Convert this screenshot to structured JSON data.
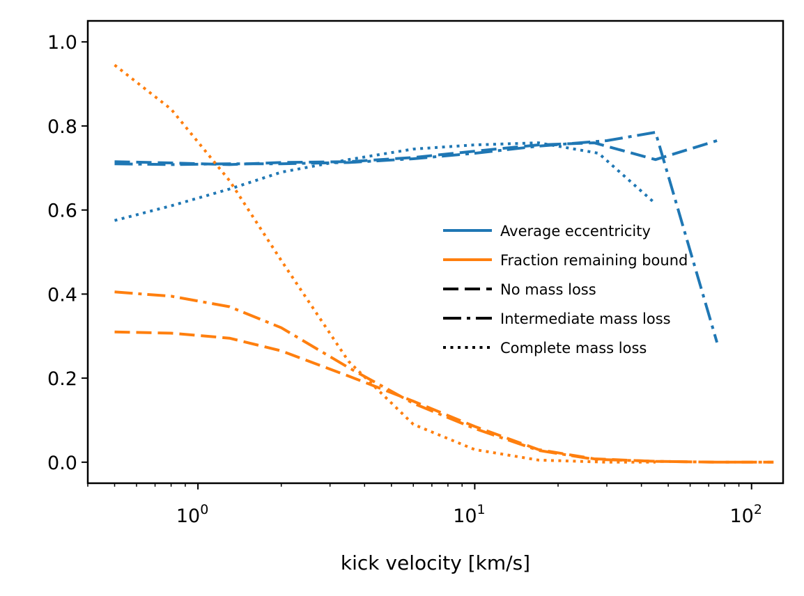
{
  "chart_data": {
    "type": "line",
    "title": "",
    "xlabel": "kick velocity [km/s]",
    "ylabel": "",
    "xscale": "log",
    "xlim": [
      0.4,
      130
    ],
    "ylim": [
      -0.05,
      1.05
    ],
    "yticks": [
      0.0,
      0.2,
      0.4,
      0.6,
      0.8,
      1.0
    ],
    "ytick_labels": [
      "0.0",
      "0.2",
      "0.4",
      "0.6",
      "0.8",
      "1.0"
    ],
    "xticks": [
      1,
      10,
      100
    ],
    "xtick_labels": [
      {
        "base": "10",
        "exp": "0"
      },
      {
        "base": "10",
        "exp": "1"
      },
      {
        "base": "10",
        "exp": "2"
      }
    ],
    "colors": {
      "eccentricity": "#1f77b4",
      "fraction": "#ff7f0e",
      "legend_style": "#000000"
    },
    "legend": {
      "placement": "center-right",
      "entries": [
        {
          "label": "Average eccentricity",
          "color": "#1f77b4",
          "style": "solid"
        },
        {
          "label": "Fraction remaining bound",
          "color": "#ff7f0e",
          "style": "solid"
        },
        {
          "label": "No mass loss",
          "color": "#000000",
          "style": "dashed"
        },
        {
          "label": "Intermediate mass loss",
          "color": "#000000",
          "style": "dashdot"
        },
        {
          "label": "Complete mass loss",
          "color": "#000000",
          "style": "dotted"
        }
      ]
    },
    "series": [
      {
        "name": "Average eccentricity — No mass loss",
        "color": "#1f77b4",
        "style": "dashed",
        "x": [
          0.5,
          0.8,
          1.3,
          2,
          3.5,
          6,
          10,
          17,
          27,
          45,
          75
        ],
        "y": [
          0.715,
          0.712,
          0.708,
          0.713,
          0.715,
          0.725,
          0.74,
          0.755,
          0.76,
          0.72,
          0.765
        ]
      },
      {
        "name": "Average eccentricity — Intermediate mass loss",
        "color": "#1f77b4",
        "style": "dashdot",
        "x": [
          0.5,
          0.8,
          1.3,
          2,
          3.5,
          6,
          10,
          17,
          30,
          45,
          75
        ],
        "y": [
          0.71,
          0.708,
          0.71,
          0.71,
          0.713,
          0.722,
          0.735,
          0.752,
          0.765,
          0.785,
          0.285
        ]
      },
      {
        "name": "Average eccentricity — Complete mass loss",
        "color": "#1f77b4",
        "style": "dotted",
        "x": [
          0.5,
          0.8,
          1.3,
          2,
          3.5,
          6,
          10,
          17,
          28,
          45
        ],
        "y": [
          0.575,
          0.61,
          0.65,
          0.69,
          0.72,
          0.745,
          0.755,
          0.76,
          0.735,
          0.615
        ]
      },
      {
        "name": "Fraction remaining bound — No mass loss",
        "color": "#ff7f0e",
        "style": "dashed",
        "x": [
          0.5,
          0.8,
          1.3,
          2,
          3.5,
          6,
          10,
          17,
          27,
          45,
          75,
          120
        ],
        "y": [
          0.31,
          0.307,
          0.295,
          0.265,
          0.205,
          0.145,
          0.085,
          0.03,
          0.008,
          0.002,
          0.0,
          0.0
        ]
      },
      {
        "name": "Fraction remaining bound — Intermediate mass loss",
        "color": "#ff7f0e",
        "style": "dashdot",
        "x": [
          0.5,
          0.8,
          1.3,
          2,
          3.5,
          6,
          10,
          17,
          27,
          45,
          75,
          120
        ],
        "y": [
          0.405,
          0.395,
          0.37,
          0.32,
          0.225,
          0.14,
          0.08,
          0.028,
          0.007,
          0.002,
          0.0,
          0.0
        ]
      },
      {
        "name": "Fraction remaining bound — Complete mass loss",
        "color": "#ff7f0e",
        "style": "dotted",
        "x": [
          0.5,
          0.8,
          1.3,
          2,
          3.5,
          6,
          10,
          17,
          30,
          45
        ],
        "y": [
          0.945,
          0.84,
          0.67,
          0.48,
          0.24,
          0.09,
          0.03,
          0.005,
          0.0,
          0.0
        ]
      }
    ]
  }
}
